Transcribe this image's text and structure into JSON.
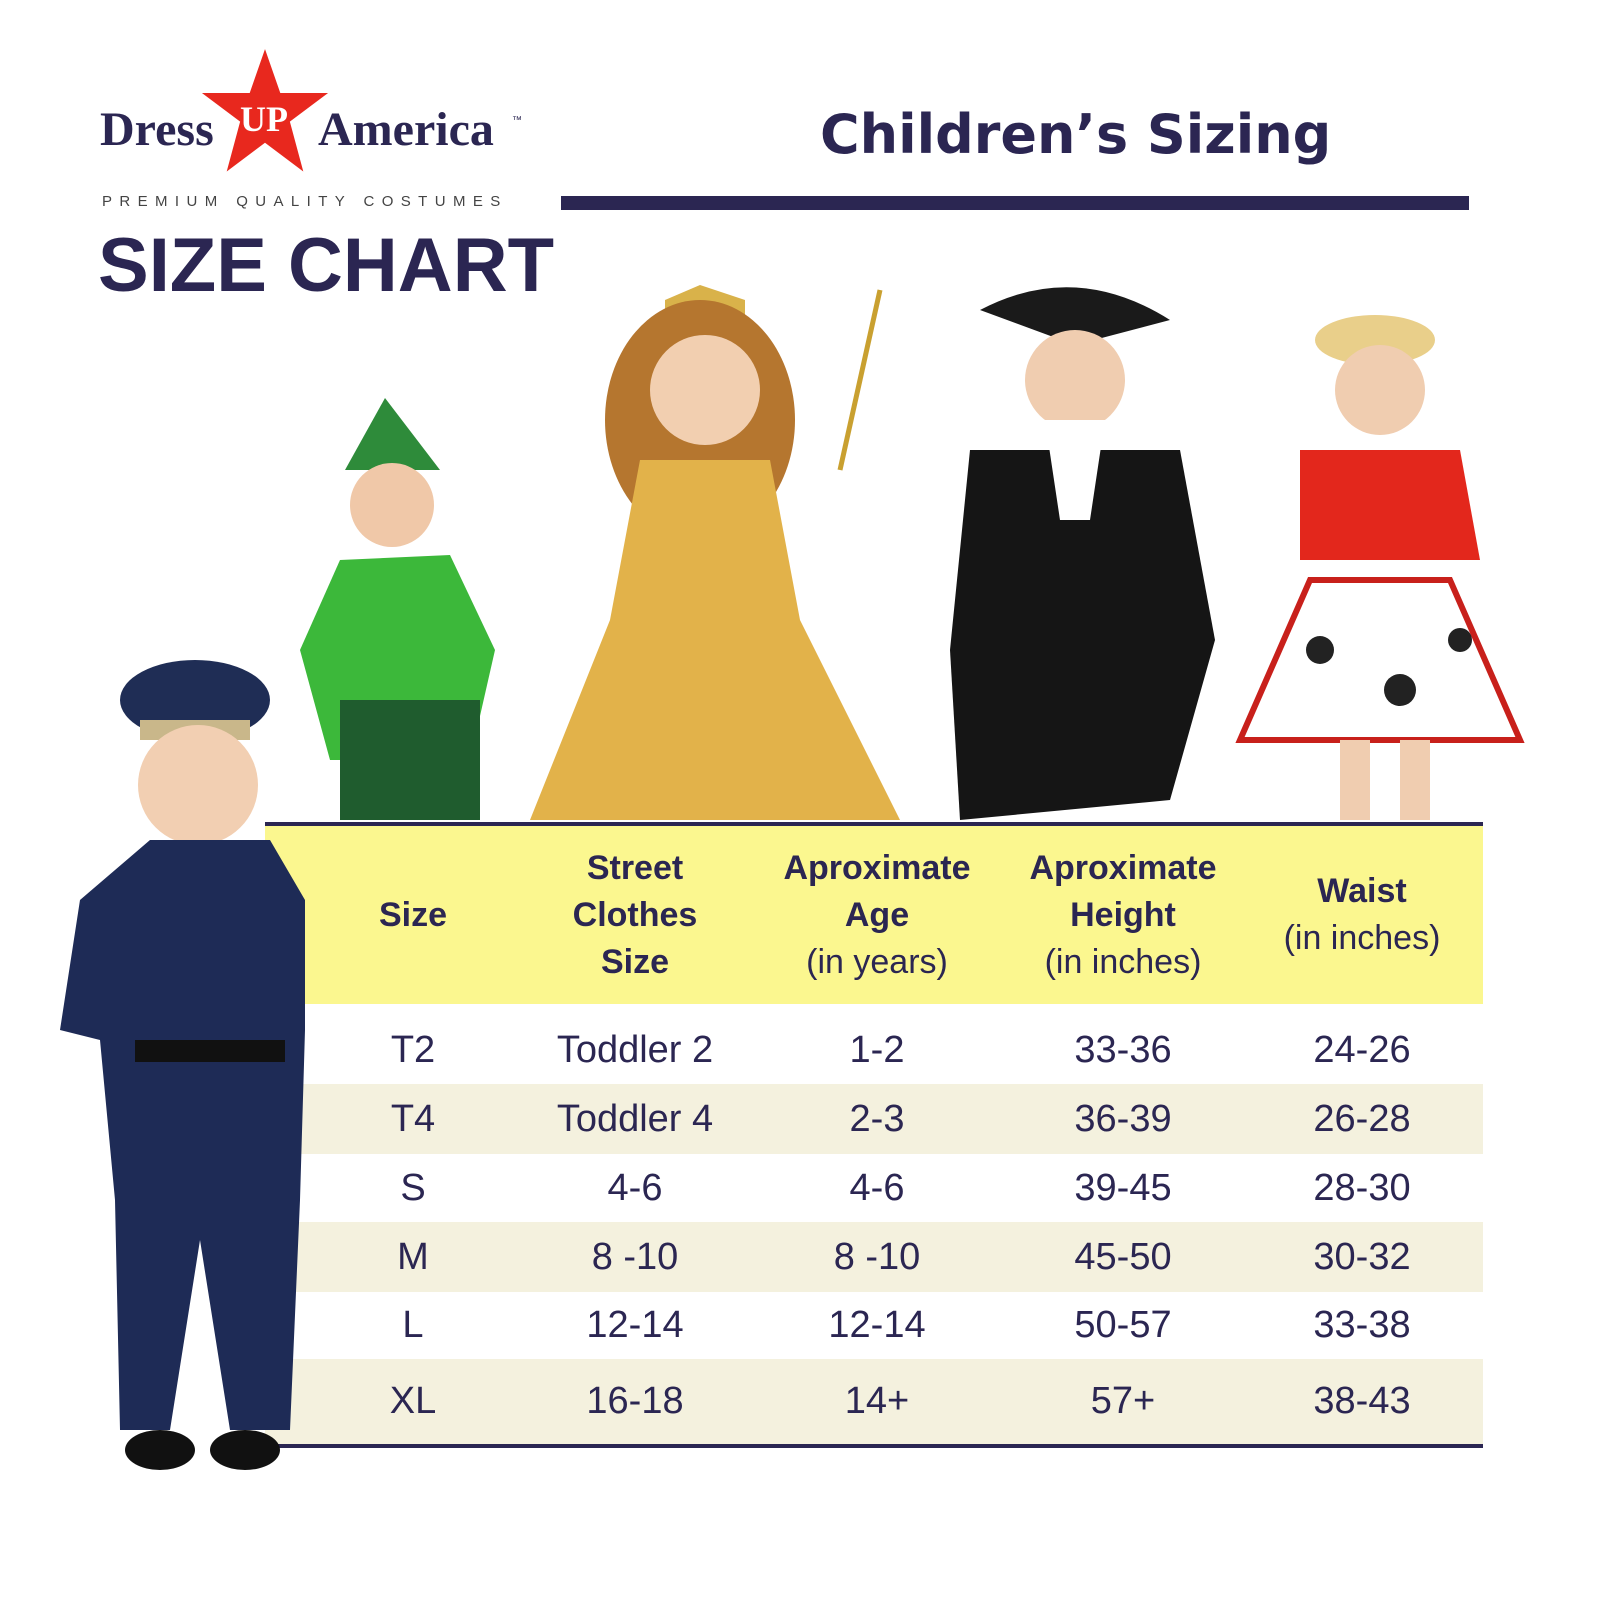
{
  "brand": {
    "name_left": "Dress",
    "name_star": "UP",
    "name_right": "America",
    "trademark": "™",
    "tagline": "PREMIUM QUALITY COSTUMES",
    "star_color": "#e8281e",
    "navy": "#2b2652"
  },
  "page_title": "SIZE CHART",
  "subtitle": "Children’s Sizing",
  "costumes": [
    "police-officer",
    "peter-pan",
    "princess",
    "colonial-gentleman",
    "cowgirl"
  ],
  "table": {
    "header_bg": "#fbf78f",
    "columns": [
      {
        "title": "Size",
        "sub": ""
      },
      {
        "title": "Street Clothes Size",
        "sub": ""
      },
      {
        "title": "Aproximate Age",
        "sub": "(in years)"
      },
      {
        "title": "Aproximate Height",
        "sub": "(in inches)"
      },
      {
        "title": "Waist",
        "sub": "(in inches)"
      }
    ],
    "rows": [
      [
        "T2",
        "Toddler 2",
        "1-2",
        "33-36",
        "24-26"
      ],
      [
        "T4",
        "Toddler 4",
        "2-3",
        "36-39",
        "26-28"
      ],
      [
        "S",
        "4-6",
        "4-6",
        "39-45",
        "28-30"
      ],
      [
        "M",
        "8 -10",
        "8 -10",
        "45-50",
        "30-32"
      ],
      [
        "L",
        "12-14",
        "12-14",
        "50-57",
        "33-38"
      ],
      [
        "XL",
        "16-18",
        "14+",
        "57+",
        "38-43"
      ]
    ]
  }
}
